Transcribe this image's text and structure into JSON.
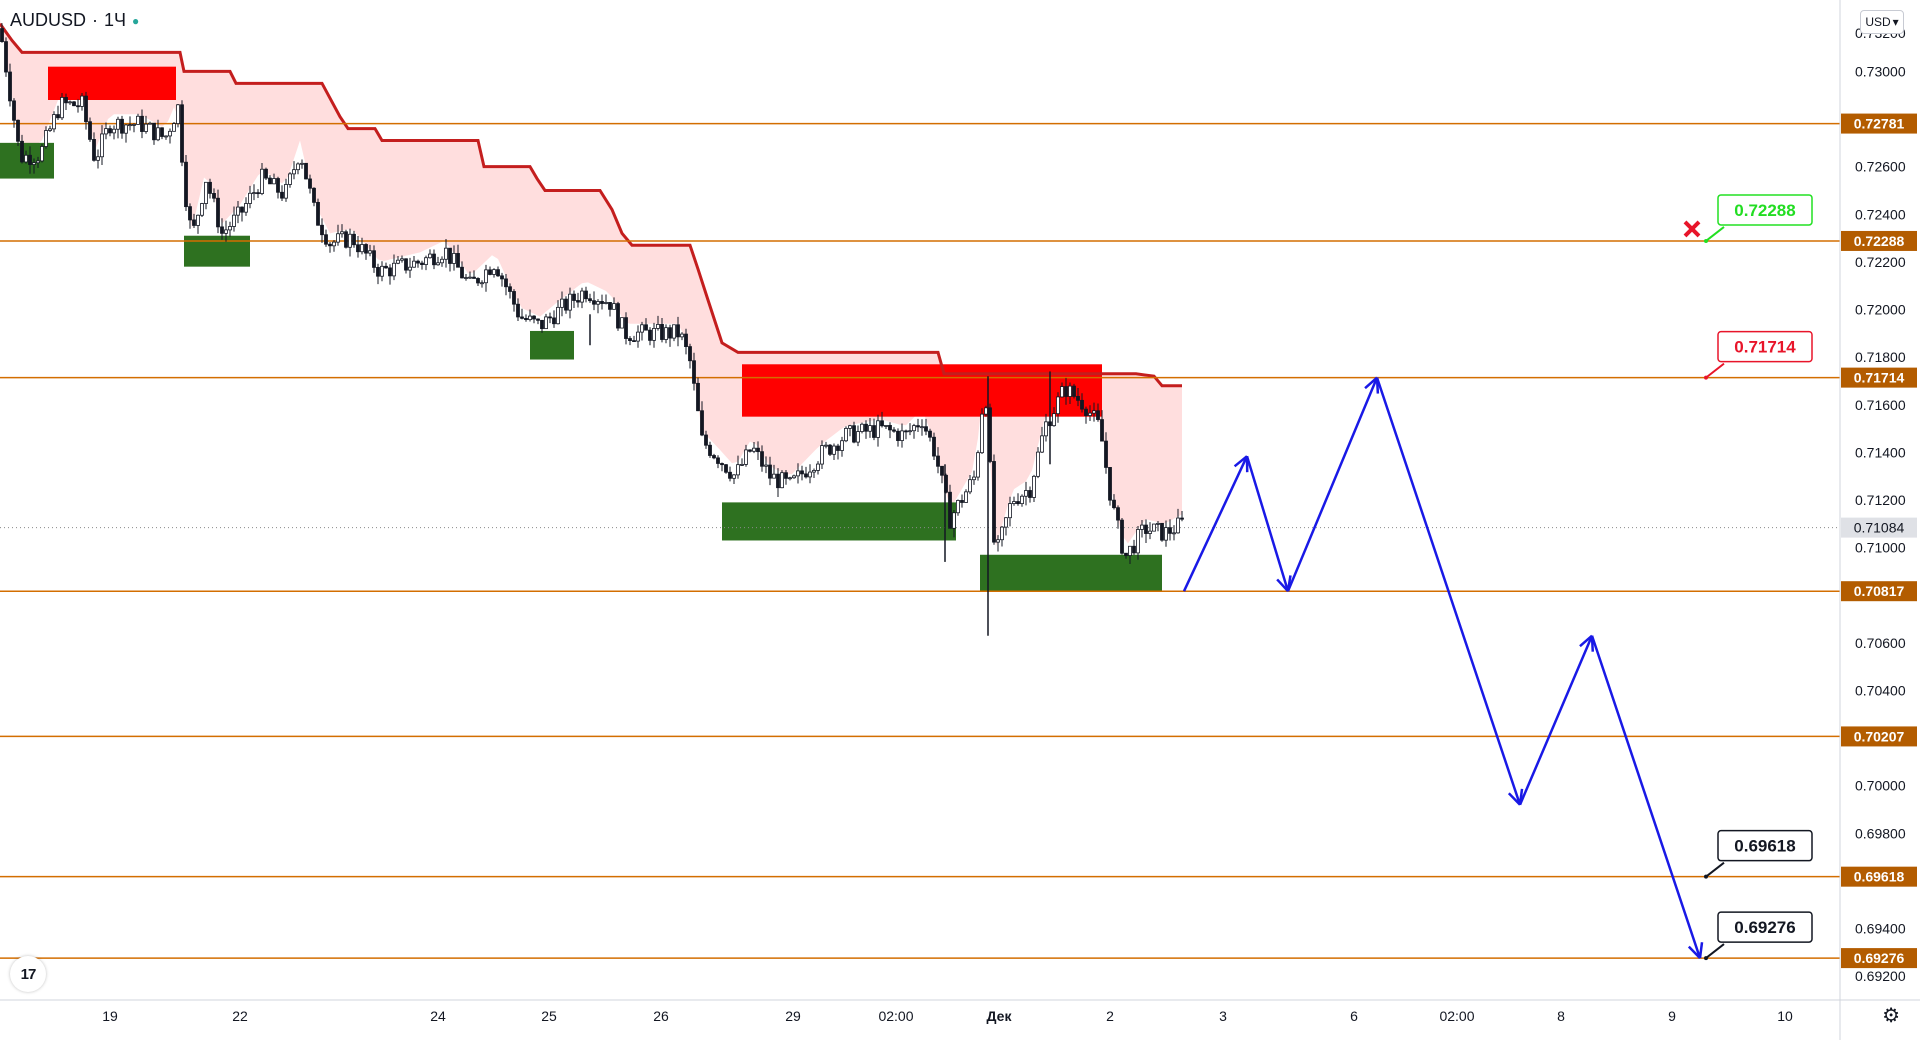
{
  "header": {
    "symbol": "AUDUSD",
    "interval": "1Ч",
    "separator": "·"
  },
  "currency_button": {
    "label": "USD",
    "icon": "chevron-down-icon"
  },
  "logo": {
    "text": "17"
  },
  "settings": {
    "icon": "gear-icon"
  },
  "colors": {
    "level_line": "#d36e00",
    "level_badge": "#b35c00",
    "supply_zone": "#ff0000",
    "demand_zone": "#2e7120",
    "trail_line": "#c41e1e",
    "trail_fill": "#ffdede",
    "projection": "#1919e6",
    "candle": "#131722",
    "invalid_marker": "#e8152a"
  },
  "chart_data": {
    "type": "candlestick",
    "symbol": "AUDUSD",
    "interval": "1Ч",
    "ylim": [
      0.691,
      0.733
    ],
    "price_axis_ticks": [
      "0.73000",
      "0.72600",
      "0.72400",
      "0.72200",
      "0.72000",
      "0.71800",
      "0.71600",
      "0.71400",
      "0.71200",
      "0.71000",
      "0.70600",
      "0.70400",
      "0.70000",
      "0.69800",
      "0.69400",
      "0.69200"
    ],
    "price_axis_top_partial": "0.73200",
    "time_axis_labels": [
      "19",
      "22",
      "24",
      "25",
      "26",
      "29",
      "02:00",
      "Дек",
      "2",
      "3",
      "6",
      "02:00",
      "8",
      "9",
      "10"
    ],
    "horizontal_levels": [
      {
        "label": "0.72781",
        "value": 0.72781
      },
      {
        "label": "0.72288",
        "value": 0.72288
      },
      {
        "label": "0.71714",
        "value": 0.71714
      },
      {
        "label": "0.70817",
        "value": 0.70817
      },
      {
        "label": "0.70207",
        "value": 0.70207
      },
      {
        "label": "0.69618",
        "value": 0.69618
      },
      {
        "label": "0.69276",
        "value": 0.69276
      }
    ],
    "current_price": {
      "label": "0.71084",
      "value": 0.71084
    },
    "callouts": [
      {
        "text": "0.72288",
        "value": 0.72288,
        "style": "green"
      },
      {
        "text": "0.71714",
        "value": 0.71714,
        "style": "red"
      },
      {
        "text": "0.69618",
        "value": 0.69618,
        "style": "black"
      },
      {
        "text": "0.69276",
        "value": 0.69276,
        "style": "black"
      }
    ],
    "invalidated_target": {
      "value": 0.72288,
      "marker": "cross"
    },
    "supply_zones": [
      {
        "t0": 48,
        "t1": 176,
        "low": 0.7288,
        "high": 0.7302
      },
      {
        "t0": 742,
        "t1": 1102,
        "low": 0.7155,
        "high": 0.7177
      }
    ],
    "demand_zones": [
      {
        "t0": 0,
        "t1": 54,
        "low": 0.7255,
        "high": 0.727
      },
      {
        "t0": 184,
        "t1": 250,
        "low": 0.7218,
        "high": 0.7231
      },
      {
        "t0": 530,
        "t1": 574,
        "low": 0.7179,
        "high": 0.7191
      },
      {
        "t0": 722,
        "t1": 956,
        "low": 0.7103,
        "high": 0.7119
      },
      {
        "t0": 980,
        "t1": 1162,
        "low": 0.70817,
        "high": 0.7097
      }
    ],
    "trail_stop": [
      [
        0,
        0.732
      ],
      [
        12,
        0.7313
      ],
      [
        22,
        0.7308
      ],
      [
        180,
        0.7308
      ],
      [
        184,
        0.73
      ],
      [
        230,
        0.73
      ],
      [
        236,
        0.7295
      ],
      [
        322,
        0.7295
      ],
      [
        340,
        0.7281
      ],
      [
        348,
        0.7276
      ],
      [
        375,
        0.7276
      ],
      [
        382,
        0.7271
      ],
      [
        478,
        0.7271
      ],
      [
        484,
        0.726
      ],
      [
        530,
        0.726
      ],
      [
        537,
        0.7255
      ],
      [
        545,
        0.725
      ],
      [
        600,
        0.725
      ],
      [
        612,
        0.7242
      ],
      [
        622,
        0.7232
      ],
      [
        632,
        0.7227
      ],
      [
        690,
        0.7227
      ],
      [
        698,
        0.7217
      ],
      [
        708,
        0.7204
      ],
      [
        722,
        0.7186
      ],
      [
        738,
        0.7182
      ],
      [
        938,
        0.7182
      ],
      [
        944,
        0.7173
      ],
      [
        1136,
        0.7173
      ],
      [
        1154,
        0.7172
      ],
      [
        1162,
        0.7168
      ],
      [
        1182,
        0.7168
      ]
    ],
    "price_path": [
      [
        0,
        0.7318
      ],
      [
        20,
        0.7264
      ],
      [
        40,
        0.7265
      ],
      [
        60,
        0.7286
      ],
      [
        82,
        0.7286
      ],
      [
        95,
        0.7263
      ],
      [
        110,
        0.7278
      ],
      [
        140,
        0.7278
      ],
      [
        165,
        0.7272
      ],
      [
        178,
        0.7285
      ],
      [
        185,
        0.725
      ],
      [
        192,
        0.723
      ],
      [
        206,
        0.7255
      ],
      [
        222,
        0.7232
      ],
      [
        240,
        0.724
      ],
      [
        262,
        0.7255
      ],
      [
        285,
        0.7248
      ],
      [
        300,
        0.7267
      ],
      [
        315,
        0.724
      ],
      [
        330,
        0.7228
      ],
      [
        352,
        0.723
      ],
      [
        380,
        0.7216
      ],
      [
        420,
        0.722
      ],
      [
        445,
        0.7225
      ],
      [
        470,
        0.721
      ],
      [
        495,
        0.722
      ],
      [
        520,
        0.7197
      ],
      [
        540,
        0.7193
      ],
      [
        560,
        0.72
      ],
      [
        585,
        0.7208
      ],
      [
        610,
        0.7203
      ],
      [
        625,
        0.719
      ],
      [
        650,
        0.719
      ],
      [
        680,
        0.719
      ],
      [
        690,
        0.7178
      ],
      [
        702,
        0.7145
      ],
      [
        718,
        0.7138
      ],
      [
        735,
        0.713
      ],
      [
        752,
        0.7142
      ],
      [
        770,
        0.713
      ],
      [
        790,
        0.7126
      ],
      [
        820,
        0.7139
      ],
      [
        845,
        0.7147
      ],
      [
        880,
        0.715
      ],
      [
        905,
        0.7147
      ],
      [
        922,
        0.7154
      ],
      [
        935,
        0.714
      ],
      [
        950,
        0.7112
      ],
      [
        975,
        0.713
      ],
      [
        985,
        0.717
      ],
      [
        995,
        0.7095
      ],
      [
        1012,
        0.712
      ],
      [
        1030,
        0.7125
      ],
      [
        1045,
        0.7151
      ],
      [
        1065,
        0.7167
      ],
      [
        1085,
        0.716
      ],
      [
        1100,
        0.715
      ],
      [
        1112,
        0.7118
      ],
      [
        1125,
        0.7096
      ],
      [
        1145,
        0.7108
      ],
      [
        1165,
        0.7106
      ],
      [
        1182,
        0.711
      ]
    ],
    "spikes": [
      [
        988,
        0.7172,
        0.7063
      ],
      [
        945,
        0.7135,
        0.7094
      ],
      [
        1050,
        0.7174,
        0.7135
      ],
      [
        590,
        0.7198,
        0.7185
      ]
    ],
    "projection_path": [
      [
        1184,
        0.70817
      ],
      [
        1247,
        0.71384
      ],
      [
        1288,
        0.70817
      ],
      [
        1377,
        0.71714
      ],
      [
        1520,
        0.6992
      ],
      [
        1592,
        0.7063
      ],
      [
        1700,
        0.69276
      ]
    ]
  }
}
